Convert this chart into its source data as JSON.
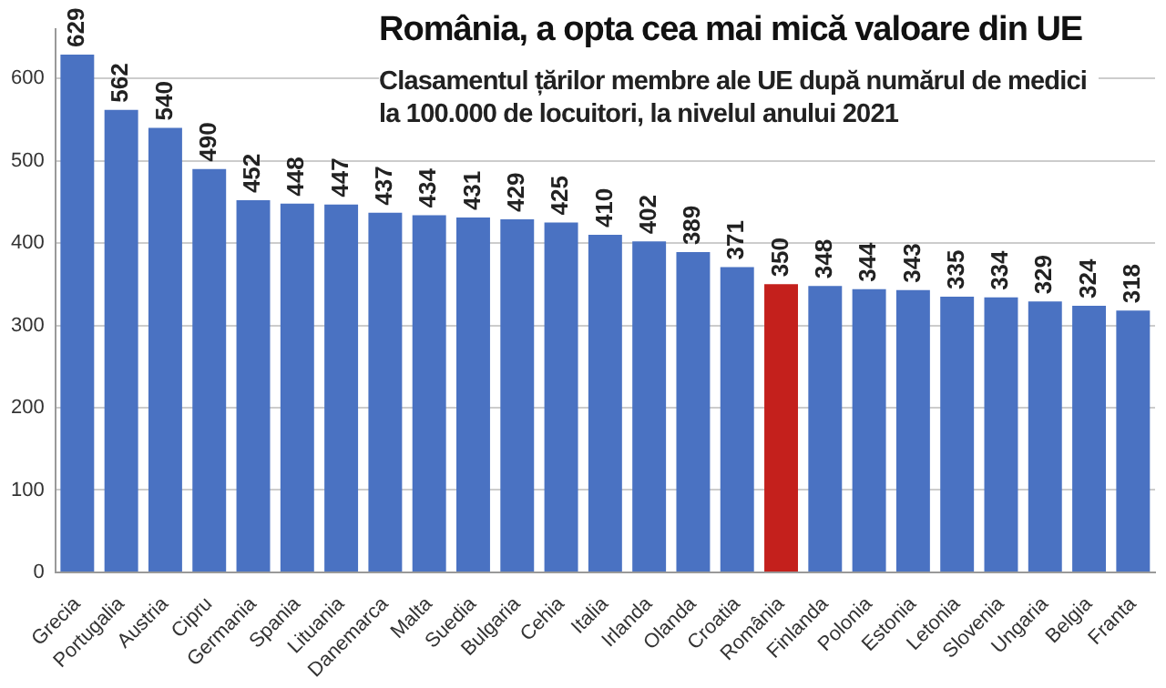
{
  "chart_data": {
    "type": "bar",
    "title": "România, a opta cea mai mică valoare din UE",
    "subtitle": "Clasamentul țărilor membre ale UE după numărul de medici la 100.000 de locuitori, la nivelul anului 2021",
    "categories": [
      "Grecia",
      "Portugalia",
      "Austria",
      "Cipru",
      "Germania",
      "Spania",
      "Lituania",
      "Danemarca",
      "Malta",
      "Suedia",
      "Bulgaria",
      "Cehia",
      "Italia",
      "Irlanda",
      "Olanda",
      "Croatia",
      "România",
      "Finlanda",
      "Polonia",
      "Estonia",
      "Letonia",
      "Slovenia",
      "Ungaria",
      "Belgia",
      "Franta"
    ],
    "values": [
      629,
      562,
      540,
      490,
      452,
      448,
      447,
      437,
      434,
      431,
      429,
      425,
      410,
      402,
      389,
      371,
      350,
      348,
      344,
      343,
      335,
      334,
      329,
      324,
      318
    ],
    "colors": [
      "#4a72c2",
      "#4a72c2",
      "#4a72c2",
      "#4a72c2",
      "#4a72c2",
      "#4a72c2",
      "#4a72c2",
      "#4a72c2",
      "#4a72c2",
      "#4a72c2",
      "#4a72c2",
      "#4a72c2",
      "#4a72c2",
      "#4a72c2",
      "#4a72c2",
      "#4a72c2",
      "#c4201c",
      "#4a72c2",
      "#4a72c2",
      "#4a72c2",
      "#4a72c2",
      "#4a72c2",
      "#4a72c2",
      "#4a72c2",
      "#4a72c2"
    ],
    "ylim": [
      0,
      660
    ],
    "yticks": [
      0,
      100,
      200,
      300,
      400,
      500,
      600
    ],
    "grid": "y",
    "legend": false,
    "data_labels": true
  }
}
